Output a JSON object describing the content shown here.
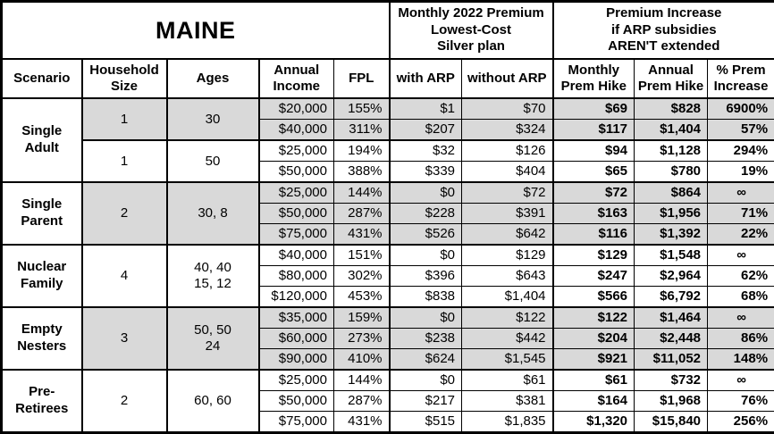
{
  "chart_data": {
    "type": "table",
    "title": "MAINE",
    "header": {
      "premium_group": "Monthly 2022 Premium\nLowest-Cost\nSilver plan",
      "increase_group": "Premium Increase\nif ARP subsidies\nAREN'T extended",
      "columns": [
        "Scenario",
        "Household\nSize",
        "Ages",
        "Annual\nIncome",
        "FPL",
        "with ARP",
        "without ARP",
        "Monthly\nPrem Hike",
        "Annual\nPrem Hike",
        "% Prem\nIncrease"
      ]
    },
    "groups": [
      {
        "scenario": "Single\nAdult",
        "subgroups": [
          {
            "household_size": "1",
            "ages": "30",
            "shaded": true,
            "rows": [
              {
                "income": "$20,000",
                "fpl": "155%",
                "with_arp": "$1",
                "without_arp": "$70",
                "monthly_hike": "$69",
                "annual_hike": "$828",
                "pct_increase": "6900%"
              },
              {
                "income": "$40,000",
                "fpl": "311%",
                "with_arp": "$207",
                "without_arp": "$324",
                "monthly_hike": "$117",
                "annual_hike": "$1,404",
                "pct_increase": "57%"
              }
            ]
          },
          {
            "household_size": "1",
            "ages": "50",
            "shaded": false,
            "rows": [
              {
                "income": "$25,000",
                "fpl": "194%",
                "with_arp": "$32",
                "without_arp": "$126",
                "monthly_hike": "$94",
                "annual_hike": "$1,128",
                "pct_increase": "294%"
              },
              {
                "income": "$50,000",
                "fpl": "388%",
                "with_arp": "$339",
                "without_arp": "$404",
                "monthly_hike": "$65",
                "annual_hike": "$780",
                "pct_increase": "19%"
              }
            ]
          }
        ]
      },
      {
        "scenario": "Single\nParent",
        "subgroups": [
          {
            "household_size": "2",
            "ages": "30, 8",
            "shaded": true,
            "rows": [
              {
                "income": "$25,000",
                "fpl": "144%",
                "with_arp": "$0",
                "without_arp": "$72",
                "monthly_hike": "$72",
                "annual_hike": "$864",
                "pct_increase": "∞"
              },
              {
                "income": "$50,000",
                "fpl": "287%",
                "with_arp": "$228",
                "without_arp": "$391",
                "monthly_hike": "$163",
                "annual_hike": "$1,956",
                "pct_increase": "71%"
              },
              {
                "income": "$75,000",
                "fpl": "431%",
                "with_arp": "$526",
                "without_arp": "$642",
                "monthly_hike": "$116",
                "annual_hike": "$1,392",
                "pct_increase": "22%"
              }
            ]
          }
        ]
      },
      {
        "scenario": "Nuclear\nFamily",
        "subgroups": [
          {
            "household_size": "4",
            "ages": "40, 40\n15, 12",
            "shaded": false,
            "rows": [
              {
                "income": "$40,000",
                "fpl": "151%",
                "with_arp": "$0",
                "without_arp": "$129",
                "monthly_hike": "$129",
                "annual_hike": "$1,548",
                "pct_increase": "∞"
              },
              {
                "income": "$80,000",
                "fpl": "302%",
                "with_arp": "$396",
                "without_arp": "$643",
                "monthly_hike": "$247",
                "annual_hike": "$2,964",
                "pct_increase": "62%"
              },
              {
                "income": "$120,000",
                "fpl": "453%",
                "with_arp": "$838",
                "without_arp": "$1,404",
                "monthly_hike": "$566",
                "annual_hike": "$6,792",
                "pct_increase": "68%"
              }
            ]
          }
        ]
      },
      {
        "scenario": "Empty\nNesters",
        "subgroups": [
          {
            "household_size": "3",
            "ages": "50, 50\n24",
            "shaded": true,
            "rows": [
              {
                "income": "$35,000",
                "fpl": "159%",
                "with_arp": "$0",
                "without_arp": "$122",
                "monthly_hike": "$122",
                "annual_hike": "$1,464",
                "pct_increase": "∞"
              },
              {
                "income": "$60,000",
                "fpl": "273%",
                "with_arp": "$238",
                "without_arp": "$442",
                "monthly_hike": "$204",
                "annual_hike": "$2,448",
                "pct_increase": "86%"
              },
              {
                "income": "$90,000",
                "fpl": "410%",
                "with_arp": "$624",
                "without_arp": "$1,545",
                "monthly_hike": "$921",
                "annual_hike": "$11,052",
                "pct_increase": "148%"
              }
            ]
          }
        ]
      },
      {
        "scenario": "Pre-\nRetirees",
        "subgroups": [
          {
            "household_size": "2",
            "ages": "60, 60",
            "shaded": false,
            "rows": [
              {
                "income": "$25,000",
                "fpl": "144%",
                "with_arp": "$0",
                "without_arp": "$61",
                "monthly_hike": "$61",
                "annual_hike": "$732",
                "pct_increase": "∞"
              },
              {
                "income": "$50,000",
                "fpl": "287%",
                "with_arp": "$217",
                "without_arp": "$381",
                "monthly_hike": "$164",
                "annual_hike": "$1,968",
                "pct_increase": "76%"
              },
              {
                "income": "$75,000",
                "fpl": "431%",
                "with_arp": "$515",
                "without_arp": "$1,835",
                "monthly_hike": "$1,320",
                "annual_hike": "$15,840",
                "pct_increase": "256%"
              }
            ]
          }
        ]
      }
    ]
  },
  "colors": {
    "shaded_row": "#d9d9d9",
    "border": "#000000",
    "background": "#ffffff"
  }
}
